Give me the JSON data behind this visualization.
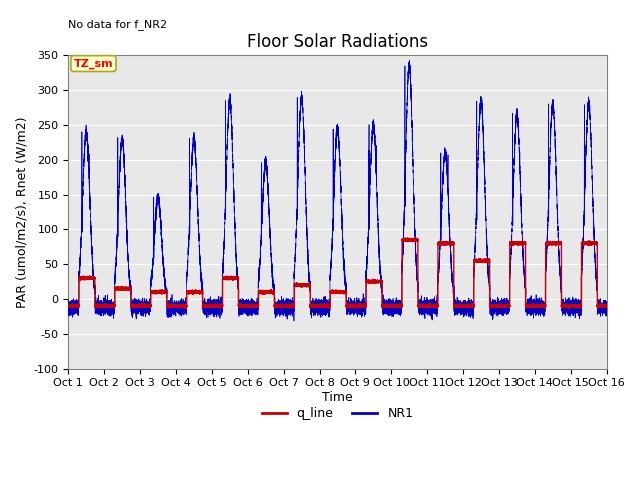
{
  "title": "Floor Solar Radiations",
  "top_left_text": "No data for f_NR2",
  "ylabel": "PAR (umol/m2/s), Rnet (W/m2)",
  "xlabel": "Time",
  "ylim": [
    -100,
    350
  ],
  "xlim": [
    0,
    15
  ],
  "xtick_labels": [
    "Oct 1",
    "Oct 2",
    "Oct 3",
    "Oct 4",
    "Oct 5",
    "Oct 6",
    "Oct 7",
    "Oct 8",
    "Oct 9",
    "Oct 10",
    "Oct 11",
    "Oct 12",
    "Oct 13",
    "Oct 14",
    "Oct 15",
    "Oct 16"
  ],
  "ytick_values": [
    -100,
    -50,
    0,
    50,
    100,
    150,
    200,
    250,
    300,
    350
  ],
  "legend_box_label": "TZ_sm",
  "legend_box_facecolor": "#ffffcc",
  "legend_box_edgecolor": "#aaa820",
  "q_line_color": "#cc0000",
  "NR1_color": "#0000cc",
  "background_color": "#e8e8e8",
  "fig_background": "#ffffff",
  "title_fontsize": 12,
  "axis_fontsize": 9,
  "tick_fontsize": 8,
  "day_peaks": [
    240,
    230,
    145,
    230,
    285,
    195,
    290,
    245,
    250,
    335,
    210,
    285,
    265,
    280,
    280
  ],
  "day_peaks2": [
    210,
    95,
    95,
    110,
    145,
    120,
    210,
    175,
    220,
    250,
    205,
    175,
    210,
    220,
    215
  ],
  "q_day_vals": [
    30,
    15,
    10,
    10,
    30,
    10,
    20,
    10,
    25,
    85,
    80,
    55,
    80,
    80,
    80
  ],
  "night_base": -12,
  "night_base2": -10
}
